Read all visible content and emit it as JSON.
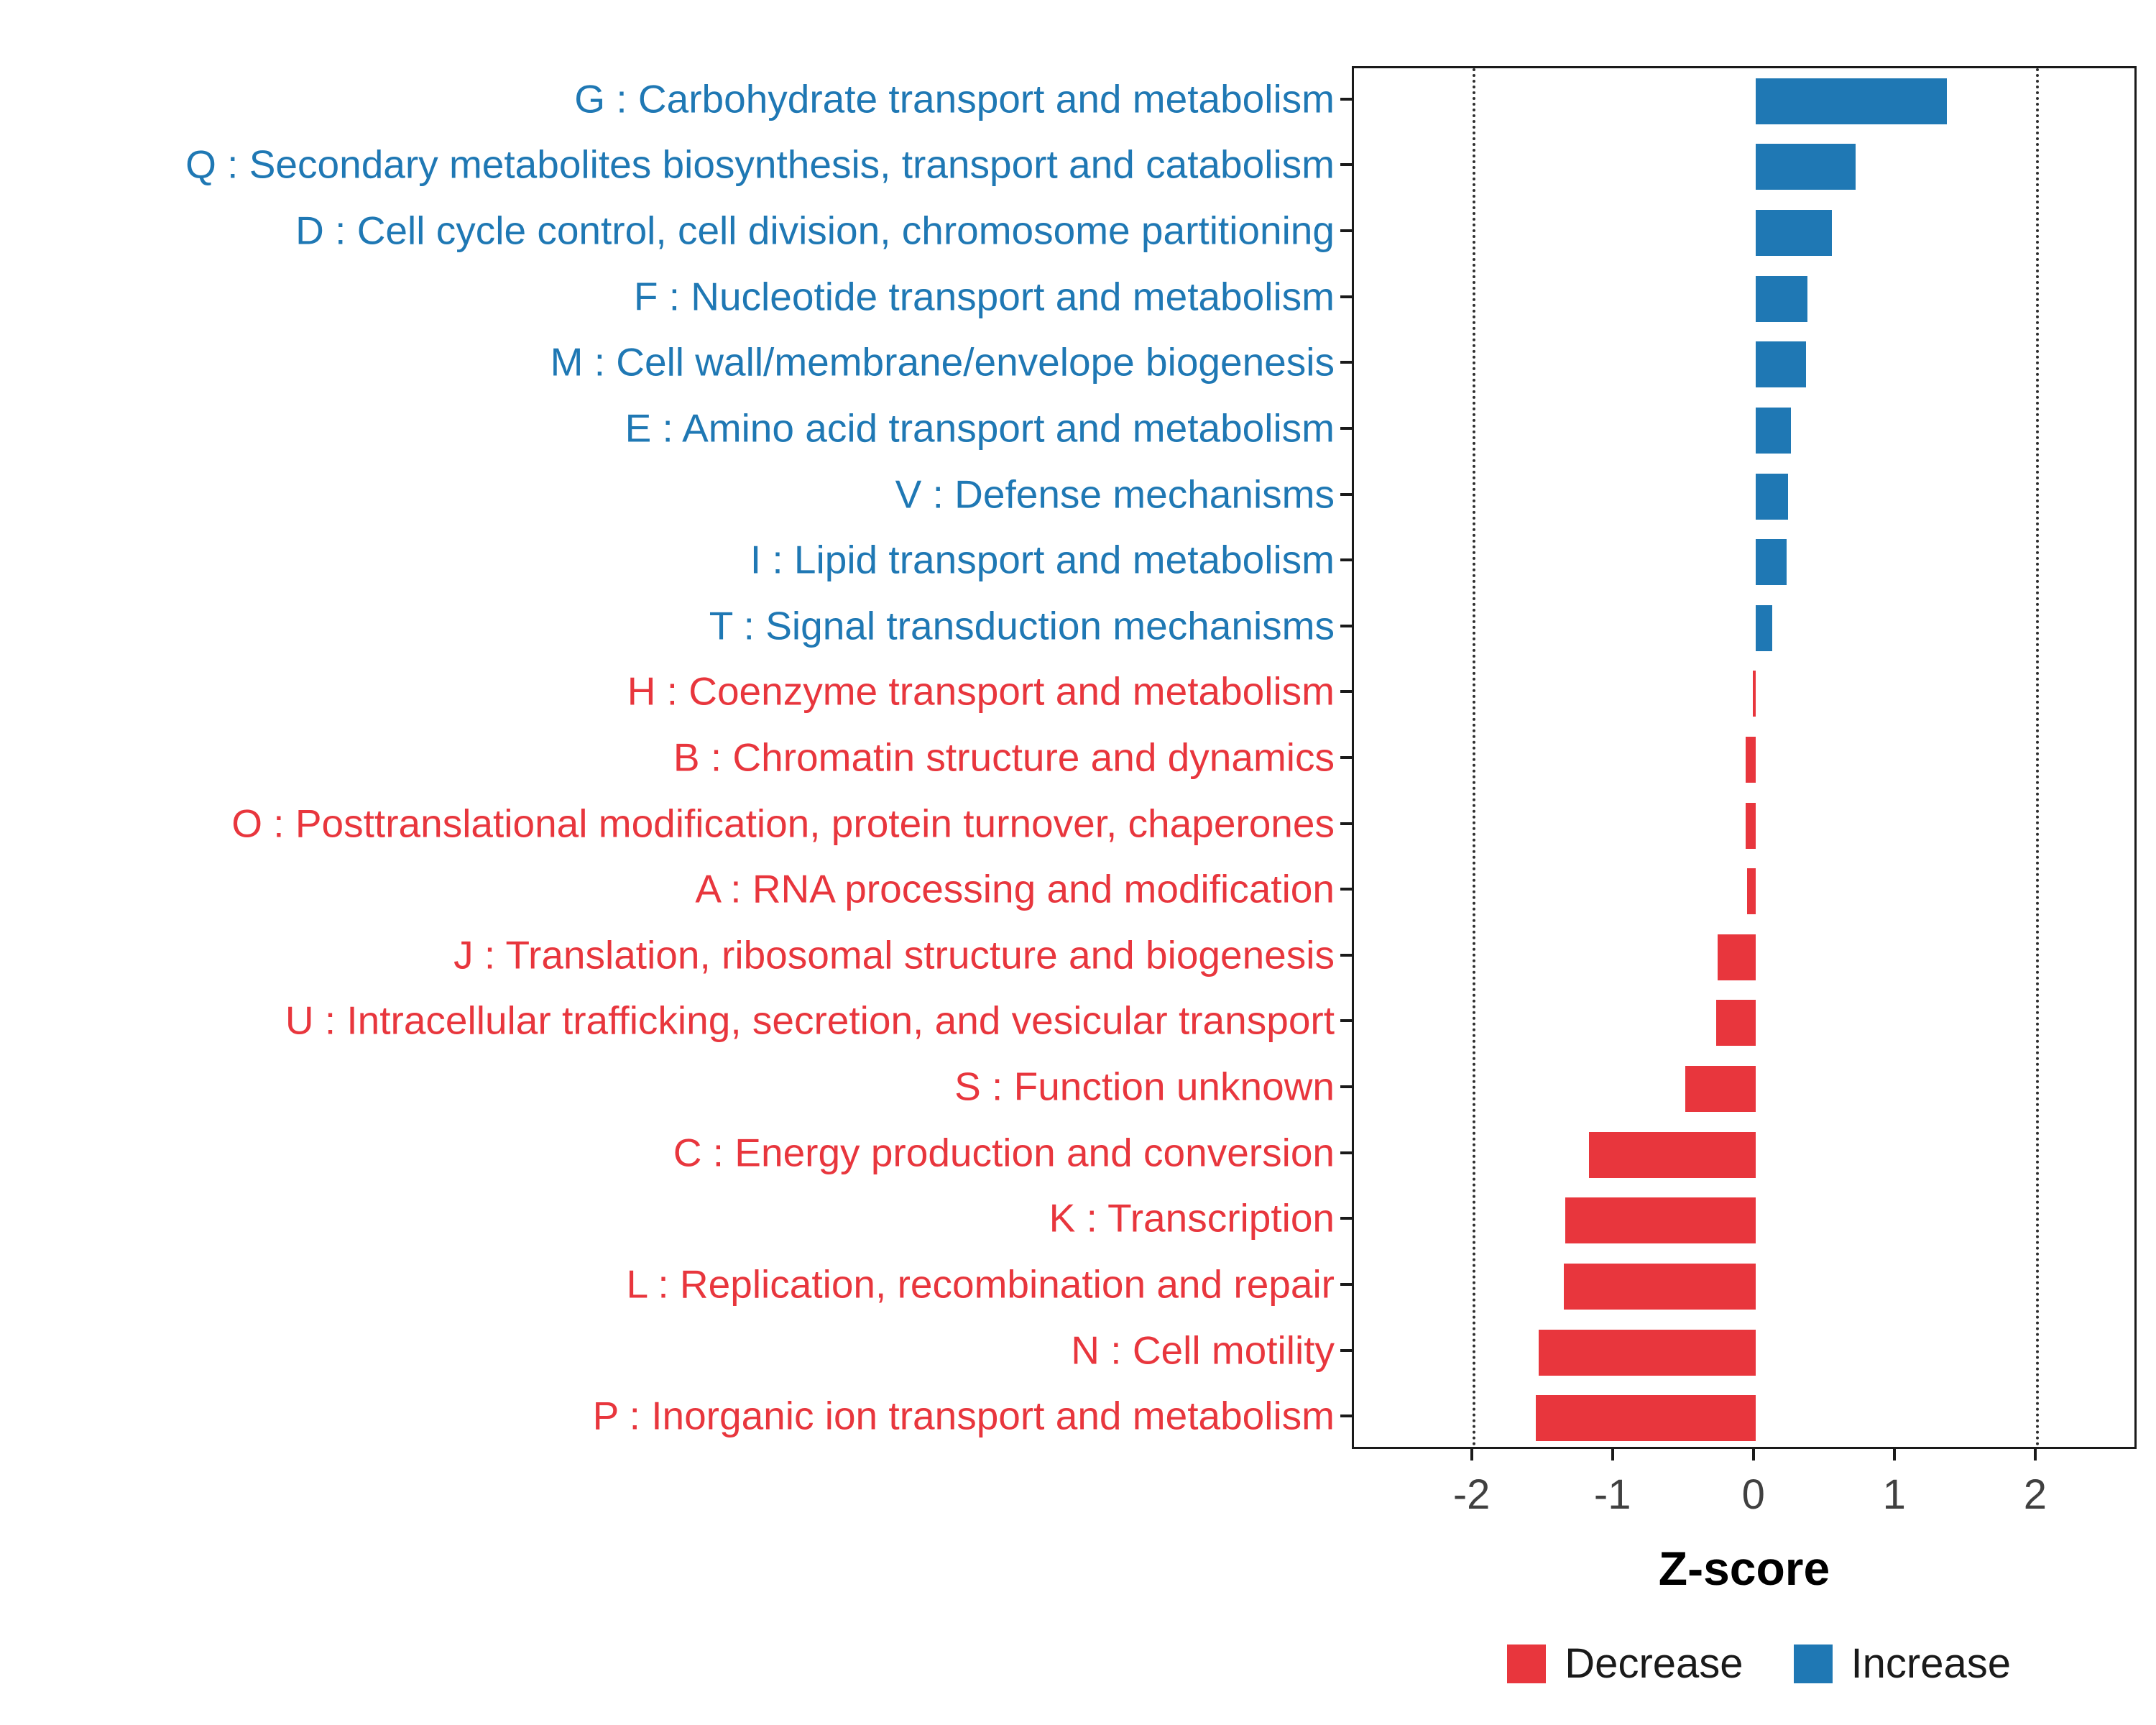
{
  "chart_data": {
    "type": "bar",
    "orientation": "horizontal",
    "title": "",
    "xlabel": "Z-score",
    "ylabel": "",
    "x_ticks": [
      -2,
      -1,
      0,
      1,
      2
    ],
    "x_domain": [
      -2.85,
      2.72
    ],
    "reference_lines": [
      -2,
      2
    ],
    "grid": false,
    "legend_position": "bottom-right",
    "colors": {
      "increase": "#1F78B4",
      "decrease": "#E8363D"
    },
    "legend": [
      {
        "label": "Decrease",
        "color_key": "decrease"
      },
      {
        "label": "Increase",
        "color_key": "increase"
      }
    ],
    "categories": [
      {
        "label": "G : Carbohydrate transport and metabolism",
        "value": 1.36,
        "direction": "increase"
      },
      {
        "label": "Q : Secondary metabolites biosynthesis, transport and catabolism",
        "value": 0.71,
        "direction": "increase"
      },
      {
        "label": "D : Cell cycle control, cell division, chromosome partitioning",
        "value": 0.54,
        "direction": "increase"
      },
      {
        "label": "F : Nucleotide transport and metabolism",
        "value": 0.37,
        "direction": "increase"
      },
      {
        "label": "M : Cell wall/membrane/envelope biogenesis",
        "value": 0.36,
        "direction": "increase"
      },
      {
        "label": "E : Amino acid transport and metabolism",
        "value": 0.25,
        "direction": "increase"
      },
      {
        "label": "V : Defense mechanisms",
        "value": 0.23,
        "direction": "increase"
      },
      {
        "label": "I : Lipid transport and metabolism",
        "value": 0.22,
        "direction": "increase"
      },
      {
        "label": "T : Signal transduction mechanisms",
        "value": 0.12,
        "direction": "increase"
      },
      {
        "label": "H : Coenzyme transport and metabolism",
        "value": -0.02,
        "direction": "decrease"
      },
      {
        "label": "B : Chromatin structure and dynamics",
        "value": -0.07,
        "direction": "decrease"
      },
      {
        "label": "O : Posttranslational modification, protein turnover, chaperones",
        "value": -0.07,
        "direction": "decrease"
      },
      {
        "label": "A : RNA processing and modification",
        "value": -0.06,
        "direction": "decrease"
      },
      {
        "label": "J : Translation, ribosomal structure and biogenesis",
        "value": -0.27,
        "direction": "decrease"
      },
      {
        "label": "U : Intracellular trafficking, secretion, and vesicular transport",
        "value": -0.28,
        "direction": "decrease"
      },
      {
        "label": "S : Function unknown",
        "value": -0.5,
        "direction": "decrease"
      },
      {
        "label": "C : Energy production and conversion",
        "value": -1.18,
        "direction": "decrease"
      },
      {
        "label": "K : Transcription",
        "value": -1.35,
        "direction": "decrease"
      },
      {
        "label": "L : Replication, recombination and repair",
        "value": -1.36,
        "direction": "decrease"
      },
      {
        "label": "N : Cell motility",
        "value": -1.54,
        "direction": "decrease"
      },
      {
        "label": "P : Inorganic ion transport and metabolism",
        "value": -1.56,
        "direction": "decrease"
      }
    ]
  }
}
